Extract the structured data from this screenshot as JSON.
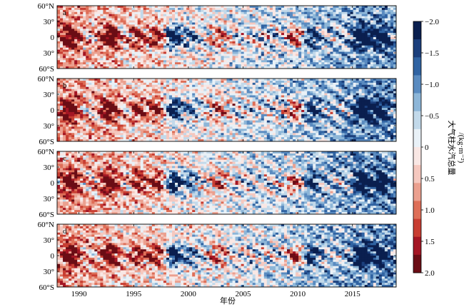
{
  "chart_data": {
    "type": "heatmap",
    "xlabel": "年份",
    "ylabel": "",
    "xlim": [
      1988,
      2019
    ],
    "ylim": [
      -60,
      60
    ],
    "x_ticks": [
      "1990",
      "1995",
      "2000",
      "2005",
      "2010",
      "2015"
    ],
    "x_tick_values": [
      1990,
      1995,
      2000,
      2005,
      2010,
      2015
    ],
    "y_ticks": [
      "60°N",
      "30°",
      "0",
      "30°",
      "60°S"
    ],
    "y_tick_values": [
      60,
      30,
      0,
      -30,
      -60
    ],
    "panels": [
      {
        "label": "a"
      },
      {
        "label": "b"
      },
      {
        "label": "c"
      },
      {
        "label": "d"
      }
    ],
    "colorbar": {
      "label_lines": [
        "大气柱水汽总量",
        "/(kg·m⁻²)"
      ],
      "ticks": [
        "−2.0",
        "−1.5",
        "−1.0",
        "−0.5",
        "0",
        "0.5",
        "1.0",
        "1.5",
        "2.0"
      ],
      "tick_values": [
        -2.0,
        -1.5,
        -1.0,
        -0.5,
        0,
        0.5,
        1.0,
        1.5,
        2.0
      ],
      "colors": [
        "#0a1f4f",
        "#1b3f7c",
        "#3063a2",
        "#5a8bc0",
        "#8db6d8",
        "#c2d9ea",
        "#e9f1f7",
        "#f9e7e4",
        "#f5c8bf",
        "#eba08f",
        "#de6f58",
        "#c83e32",
        "#a41624",
        "#6b0d15"
      ]
    },
    "anomaly_events": [
      {
        "year": 1989.2,
        "sign": 1,
        "strength": 0.9
      },
      {
        "year": 1992.8,
        "sign": 1,
        "strength": 1.0
      },
      {
        "year": 1995.4,
        "sign": 1,
        "strength": 0.6
      },
      {
        "year": 1997.2,
        "sign": 1,
        "strength": 0.7
      },
      {
        "year": 1998.6,
        "sign": -1,
        "strength": 1.0
      },
      {
        "year": 2000.2,
        "sign": -1,
        "strength": 0.5
      },
      {
        "year": 2002.8,
        "sign": 1,
        "strength": 0.5
      },
      {
        "year": 2009.8,
        "sign": 1,
        "strength": 0.7
      },
      {
        "year": 2011.2,
        "sign": -1,
        "strength": 0.6
      },
      {
        "year": 2015.9,
        "sign": -1,
        "strength": 1.0
      },
      {
        "year": 2017.6,
        "sign": -1,
        "strength": 0.8
      }
    ],
    "trend": {
      "start_value": 0.6,
      "end_value": -0.8
    }
  }
}
